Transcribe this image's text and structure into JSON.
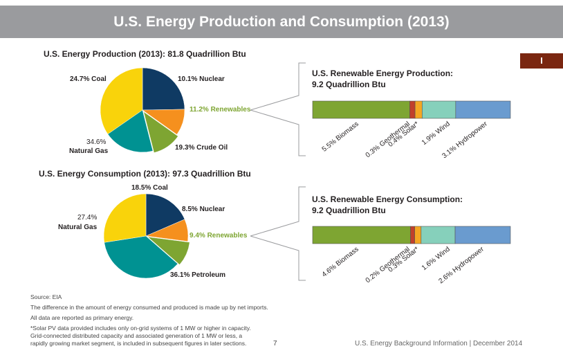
{
  "banner_title": "U.S. Energy Production and Consumption (2013)",
  "page_tab": "I",
  "colors": {
    "coal": "#0f3a63",
    "nuclear": "#f5901e",
    "renewables": "#7ea532",
    "oil": "#009292",
    "gas": "#f9d30b",
    "biomass": "#7ea532",
    "geothermal": "#c1402b",
    "solar": "#f5a623",
    "wind": "#86d0bb",
    "hydropower": "#6a9bcf"
  },
  "chart_data": [
    {
      "type": "pie",
      "title": "U.S. Energy Production (2013): 81.8 Quadrillion Btu",
      "slices": [
        {
          "key": "coal",
          "label": "Coal",
          "value": 24.7,
          "text": "24.7% Coal"
        },
        {
          "key": "nuclear",
          "label": "Nuclear",
          "value": 10.1,
          "text": "10.1% Nuclear"
        },
        {
          "key": "renewables",
          "label": "Renewables",
          "value": 11.2,
          "text": "11.2% Renewables"
        },
        {
          "key": "oil",
          "label": "Crude Oil",
          "value": 19.3,
          "text": "19.3% Crude Oil"
        },
        {
          "key": "gas",
          "label": "Natural Gas",
          "value": 34.6,
          "pct": "34.6%",
          "name": "Natural Gas"
        }
      ]
    },
    {
      "type": "pie",
      "title": "U.S. Energy Consumption (2013): 97.3 Quadrillion Btu",
      "slices": [
        {
          "key": "coal",
          "label": "Coal",
          "value": 18.5,
          "text": "18.5% Coal"
        },
        {
          "key": "nuclear",
          "label": "Nuclear",
          "value": 8.5,
          "text": "8.5% Nuclear"
        },
        {
          "key": "renewables",
          "label": "Renewables",
          "value": 9.4,
          "text": "9.4% Renewables"
        },
        {
          "key": "oil",
          "label": "Petroleum",
          "value": 36.1,
          "text": "36.1% Petroleum"
        },
        {
          "key": "gas",
          "label": "Natural Gas",
          "value": 27.4,
          "pct": "27.4%",
          "name": "Natural Gas"
        }
      ]
    },
    {
      "type": "bar",
      "title": "U.S. Renewable Energy Production: 9.2 Quadrillion Btu",
      "title_lines": [
        "U.S. Renewable Energy Production:",
        "9.2 Quadrillion Btu"
      ],
      "segments": [
        {
          "key": "biomass",
          "label": "Biomass",
          "value": 5.5,
          "text": "5.5% Biomass"
        },
        {
          "key": "geothermal",
          "label": "Geothermal",
          "value": 0.3,
          "text": "0.3% Geothermal"
        },
        {
          "key": "solar",
          "label": "Solar*",
          "value": 0.4,
          "text": "0.4% Solar*"
        },
        {
          "key": "wind",
          "label": "Wind",
          "value": 1.9,
          "text": "1.9% Wind"
        },
        {
          "key": "hydropower",
          "label": "Hydropower",
          "value": 3.1,
          "text": "3.1% Hydropower"
        }
      ]
    },
    {
      "type": "bar",
      "title": "U.S. Renewable Energy Consumption: 9.2 Quadrillion Btu",
      "title_lines": [
        "U.S. Renewable Energy Consumption:",
        "9.2 Quadrillion Btu"
      ],
      "segments": [
        {
          "key": "biomass",
          "label": "Biomass",
          "value": 4.6,
          "text": "4.6% Biomass"
        },
        {
          "key": "geothermal",
          "label": "Geothermal",
          "value": 0.2,
          "text": "0.2% Geothermal"
        },
        {
          "key": "solar",
          "label": "Solar*",
          "value": 0.3,
          "text": "0.3% Solar*"
        },
        {
          "key": "wind",
          "label": "Wind",
          "value": 1.6,
          "text": "1.6% Wind"
        },
        {
          "key": "hydropower",
          "label": "Hydropower",
          "value": 2.6,
          "text": "2.6% Hydropower"
        }
      ]
    }
  ],
  "footer": {
    "source": "Source: EIA",
    "note1": "The difference in the amount of energy consumed and produced is made up by net imports.",
    "note2": "All data are reported as primary energy.",
    "note3_lines": [
      "*Solar PV data provided includes only on-grid systems of 1 MW or higher in capacity.",
      "Grid-connected distributed capacity and associated generation of 1 MW or less, a",
      "rapidly growing market segment, is included in subsequent figures in later sections."
    ],
    "page_number": "7",
    "right": "U.S. Energy Background Information  |  December 2014"
  }
}
